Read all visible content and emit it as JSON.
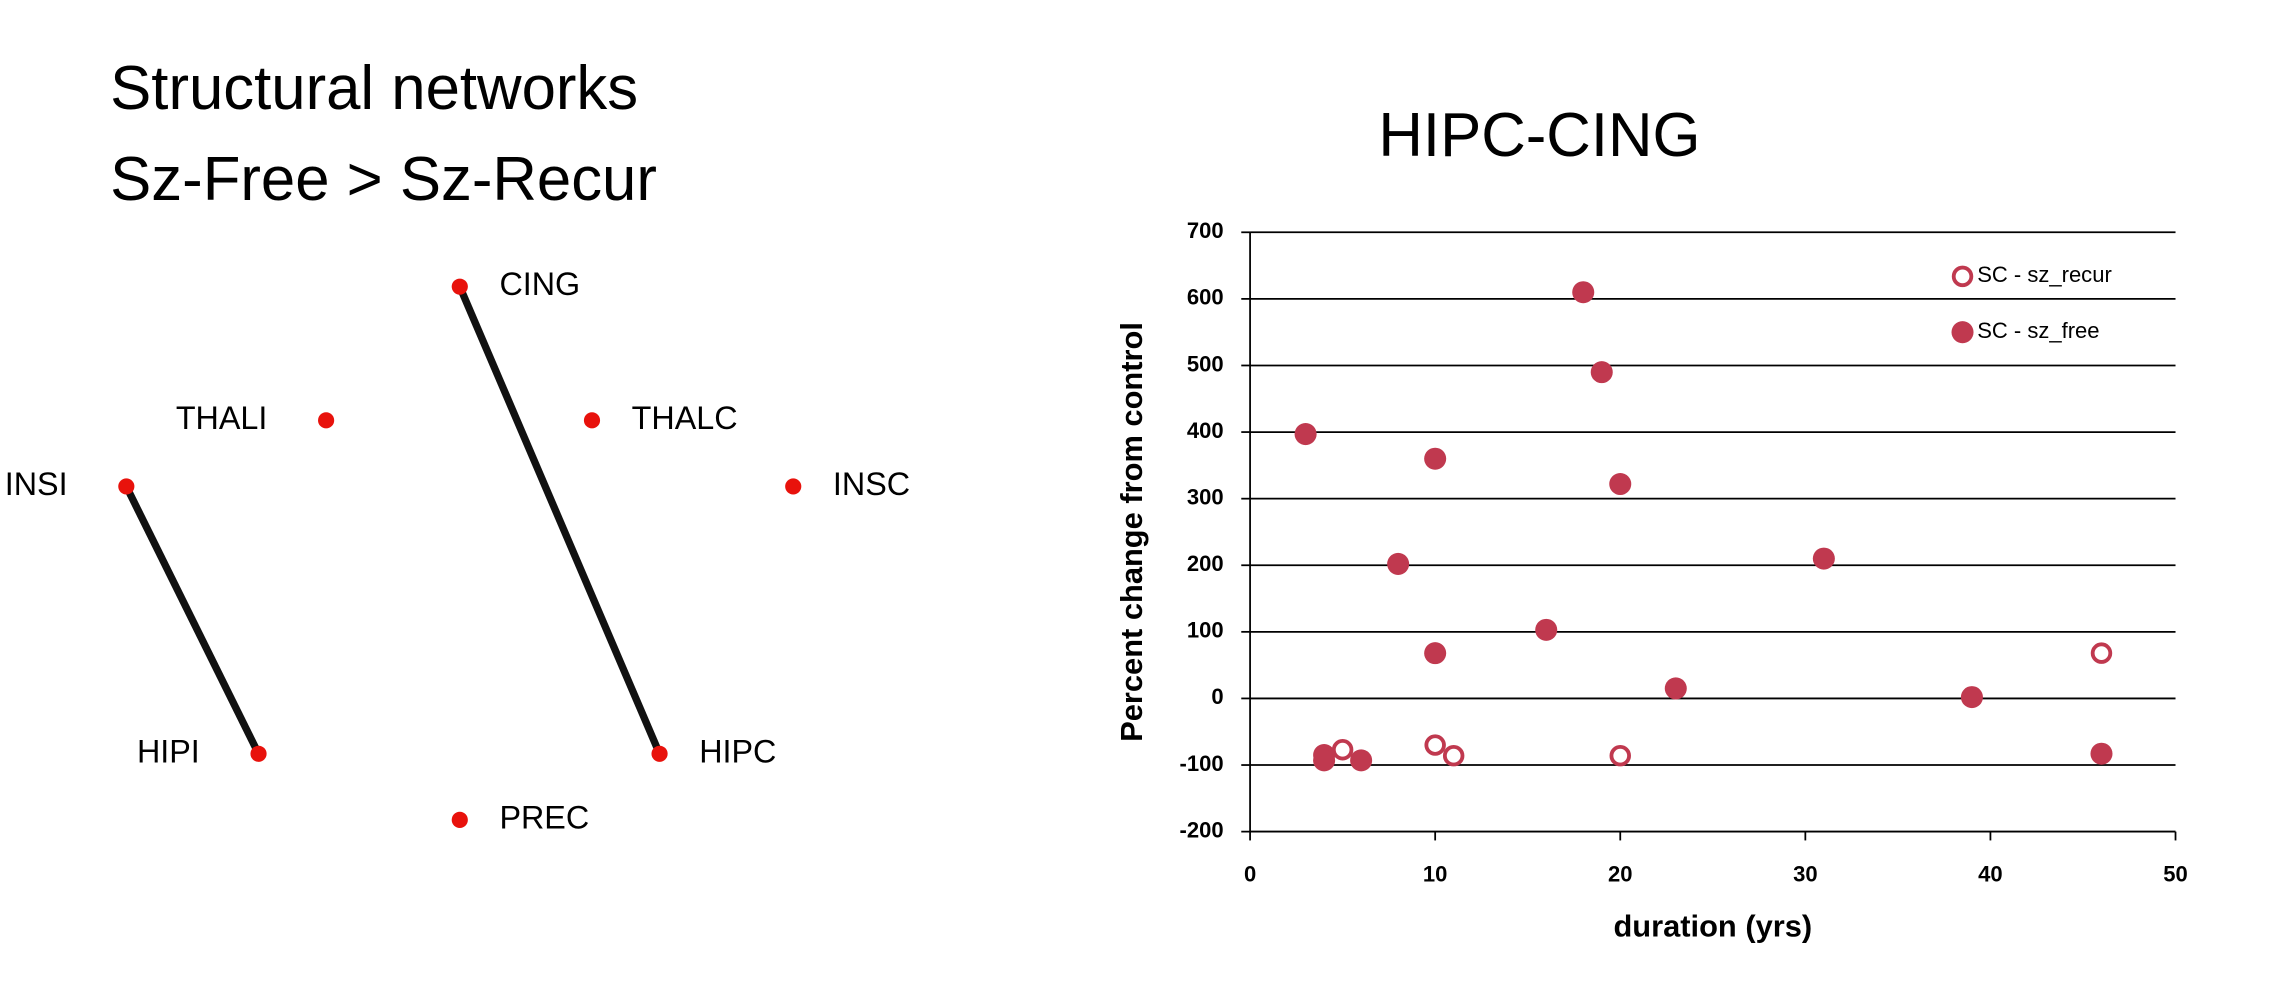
{
  "heading": {
    "lines": [
      "Structural networks",
      "Sz-Free > Sz-Recur"
    ]
  },
  "network": {
    "nodes": [
      {
        "label": "CING"
      },
      {
        "label": "THALI"
      },
      {
        "label": "THALC"
      },
      {
        "label": "INSI"
      },
      {
        "label": "INSC"
      },
      {
        "label": "HIPI"
      },
      {
        "label": "HIPC"
      },
      {
        "label": "PREC"
      }
    ],
    "node_color": "#e8120c",
    "edge_color": "#111111"
  },
  "chart_data": {
    "type": "scatter",
    "title": "HIPC-CING",
    "x_label": "duration (yrs)",
    "y_label": "Percent change from control",
    "xlim": [
      0,
      50
    ],
    "xticks": [
      0,
      10,
      20,
      30,
      40,
      50
    ],
    "ylim": [
      -200,
      700
    ],
    "yticks": [
      -200,
      -100,
      0,
      100,
      200,
      300,
      400,
      500,
      600,
      700
    ],
    "grid": true,
    "legend": "top right",
    "series": [
      {
        "name": "SC - sz_recur",
        "color": "#c0394f",
        "marker": "open",
        "x": [
          5,
          10,
          11,
          20,
          46
        ],
        "values": [
          -77,
          -70,
          -86,
          -86,
          68
        ]
      },
      {
        "name": "SC - sz_free",
        "color": "#c0394f",
        "marker": "filled",
        "x": [
          18,
          19,
          3,
          10,
          20,
          8,
          31,
          16,
          10,
          23,
          39,
          46,
          4,
          4,
          6
        ],
        "values": [
          610,
          490,
          397,
          360,
          322,
          202,
          210,
          103,
          68,
          15,
          2,
          -83,
          -85,
          -93,
          -93
        ]
      }
    ]
  }
}
